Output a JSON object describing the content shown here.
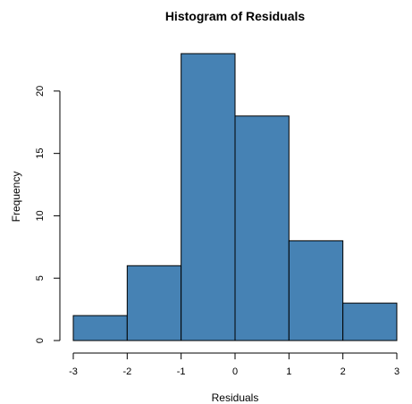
{
  "chart_data": {
    "type": "bar",
    "title": "Histogram of Residuals",
    "xlabel": "Residuals",
    "ylabel": "Frequency",
    "bins": [
      {
        "from": -3,
        "to": -2,
        "count": 2
      },
      {
        "from": -2,
        "to": -1,
        "count": 6
      },
      {
        "from": -1,
        "to": 0,
        "count": 23
      },
      {
        "from": 0,
        "to": 1,
        "count": 18
      },
      {
        "from": 1,
        "to": 2,
        "count": 8
      },
      {
        "from": 2,
        "to": 3,
        "count": 3
      }
    ],
    "xlim": [
      -3,
      3
    ],
    "ylim": [
      0,
      23
    ],
    "x_ticks": [
      -3,
      -2,
      -1,
      0,
      1,
      2,
      3
    ],
    "y_ticks": [
      0,
      5,
      10,
      15,
      20
    ],
    "bar_color": "#4682B4",
    "bar_border_color": "#000000",
    "grid": false,
    "legend": "none"
  }
}
